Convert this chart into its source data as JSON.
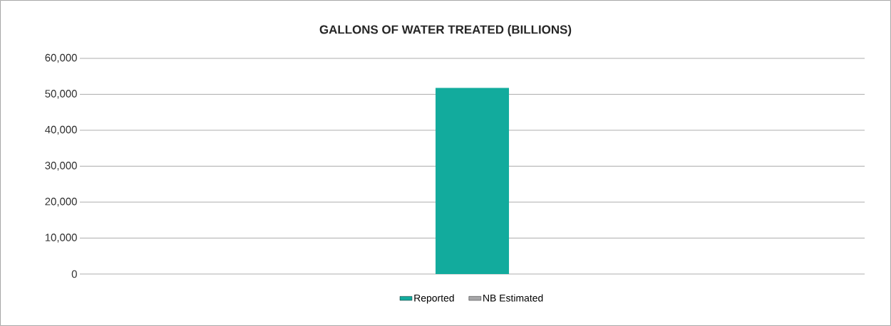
{
  "chart_data": {
    "type": "bar",
    "title": "GALLONS OF WATER TREATED (BILLIONS)",
    "categories": [
      null
    ],
    "stacked": true,
    "series": [
      {
        "name": "Reported",
        "color": "#12ab9d",
        "values": [
          51800
        ]
      },
      {
        "name": "NB Estimated",
        "color": "#a6a6a8",
        "values": [
          0
        ]
      }
    ],
    "ylim": [
      0,
      60000
    ],
    "yticks": [
      {
        "value": 0,
        "label": "0"
      },
      {
        "value": 10000,
        "label": "10,000"
      },
      {
        "value": 20000,
        "label": "20,000"
      },
      {
        "value": 30000,
        "label": "30,000"
      },
      {
        "value": 40000,
        "label": "40,000"
      },
      {
        "value": 50000,
        "label": "50,000"
      },
      {
        "value": 60000,
        "label": "60,000"
      }
    ],
    "grid": "y",
    "legend": "bottom"
  }
}
